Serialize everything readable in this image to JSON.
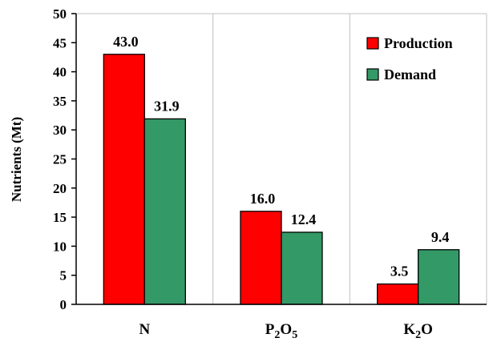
{
  "chart_data": {
    "type": "bar",
    "categories": [
      {
        "base": "N",
        "sub": "",
        "tail": ""
      },
      {
        "base": "P",
        "sub": "2",
        "mid": "O",
        "sub2": "5"
      },
      {
        "base": "K",
        "sub": "2",
        "mid": "O",
        "sub2": ""
      }
    ],
    "series": [
      {
        "name": "Production",
        "color": "#ff0000",
        "values": [
          43.0,
          16.0,
          3.5
        ],
        "labels": [
          "43.0",
          "16.0",
          "3.5"
        ]
      },
      {
        "name": "Demand",
        "color": "#339966",
        "values": [
          31.9,
          12.4,
          9.4
        ],
        "labels": [
          "31.9",
          "12.4",
          "9.4"
        ]
      }
    ],
    "ylabel": "Nutrients (Mt)",
    "ylim": [
      0,
      50
    ],
    "yticks": [
      "0",
      "5",
      "10",
      "15",
      "20",
      "25",
      "30",
      "35",
      "40",
      "45",
      "50"
    ],
    "grid": "vertical-separators",
    "legend_position": "top-right"
  }
}
